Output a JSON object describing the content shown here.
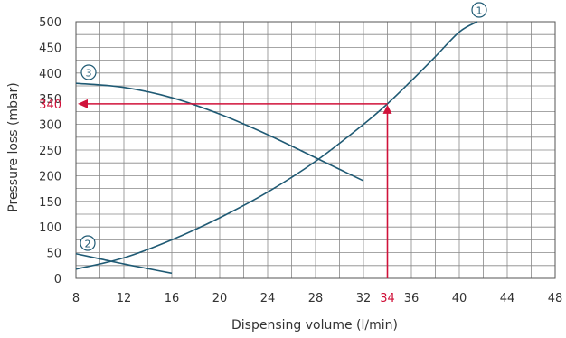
{
  "chart_data": {
    "type": "line",
    "xlabel": "Dispensing volume (l/min)",
    "ylabel": "Pressure loss (mbar)",
    "xlim": [
      8,
      48
    ],
    "ylim": [
      0,
      500
    ],
    "x_ticks": [
      8,
      12,
      16,
      20,
      24,
      28,
      32,
      36,
      40,
      44,
      48
    ],
    "y_ticks": [
      0,
      50,
      100,
      150,
      200,
      250,
      300,
      350,
      400,
      450,
      500
    ],
    "grid": true,
    "series": [
      {
        "name": "①",
        "x": [
          8,
          12,
          16,
          20,
          24,
          28,
          32,
          34,
          36,
          38,
          40,
          41.5
        ],
        "values": [
          18,
          40,
          75,
          118,
          168,
          228,
          300,
          340,
          385,
          432,
          480,
          500
        ],
        "color": "#1f5a74"
      },
      {
        "name": "②",
        "x": [
          8,
          10,
          12,
          14,
          16
        ],
        "values": [
          48,
          38,
          28,
          19,
          10
        ],
        "color": "#1f5a74"
      },
      {
        "name": "③",
        "x": [
          8,
          12,
          16,
          20,
          24,
          28,
          32
        ],
        "values": [
          380,
          372,
          352,
          320,
          280,
          235,
          190
        ],
        "color": "#1f5a74"
      }
    ],
    "highlight": {
      "x": 34,
      "y": 340,
      "x_label": "34",
      "y_label": "340",
      "color": "#d0123a"
    }
  }
}
